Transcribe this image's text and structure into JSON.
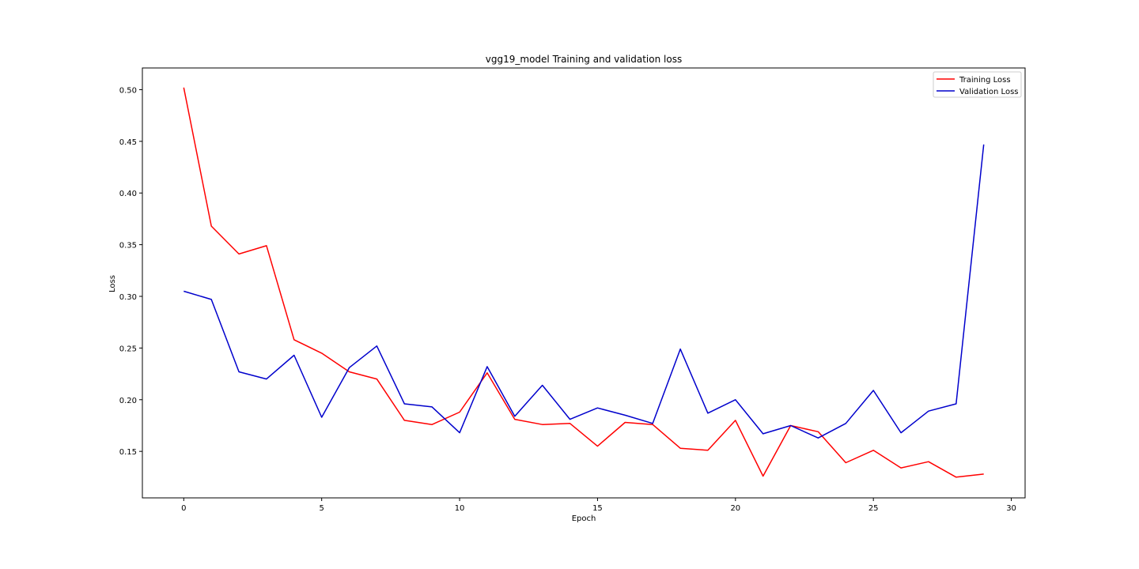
{
  "chart_data": {
    "type": "line",
    "title": "vgg19_model Training and validation loss",
    "xlabel": "Epoch",
    "ylabel": "Loss",
    "xlim": [
      -1.5,
      30.5
    ],
    "ylim": [
      0.105,
      0.521
    ],
    "xticks": [
      0,
      5,
      10,
      15,
      20,
      25,
      30
    ],
    "yticks": [
      0.15,
      0.2,
      0.25,
      0.3,
      0.35,
      0.4,
      0.45,
      0.5
    ],
    "ytick_labels": [
      "0.15",
      "0.20",
      "0.25",
      "0.30",
      "0.35",
      "0.40",
      "0.45",
      "0.50"
    ],
    "grid": false,
    "legend_position": "top-right",
    "x": [
      0,
      1,
      2,
      3,
      4,
      5,
      6,
      7,
      8,
      9,
      10,
      11,
      12,
      13,
      14,
      15,
      16,
      17,
      18,
      19,
      20,
      21,
      22,
      23,
      24,
      25,
      26,
      27,
      28,
      29
    ],
    "series": [
      {
        "name": "Training Loss",
        "color": "#ff0000",
        "values": [
          0.502,
          0.368,
          0.341,
          0.349,
          0.258,
          0.245,
          0.227,
          0.22,
          0.18,
          0.176,
          0.188,
          0.226,
          0.181,
          0.176,
          0.177,
          0.155,
          0.178,
          0.176,
          0.153,
          0.151,
          0.18,
          0.126,
          0.175,
          0.169,
          0.139,
          0.151,
          0.134,
          0.14,
          0.125,
          0.128
        ]
      },
      {
        "name": "Validation Loss",
        "color": "#0000cc",
        "values": [
          0.305,
          0.297,
          0.227,
          0.22,
          0.243,
          0.183,
          0.231,
          0.252,
          0.196,
          0.193,
          0.168,
          0.232,
          0.184,
          0.214,
          0.181,
          0.192,
          0.185,
          0.177,
          0.249,
          0.187,
          0.2,
          0.167,
          0.175,
          0.163,
          0.177,
          0.209,
          0.168,
          0.189,
          0.196,
          0.447
        ]
      }
    ]
  }
}
